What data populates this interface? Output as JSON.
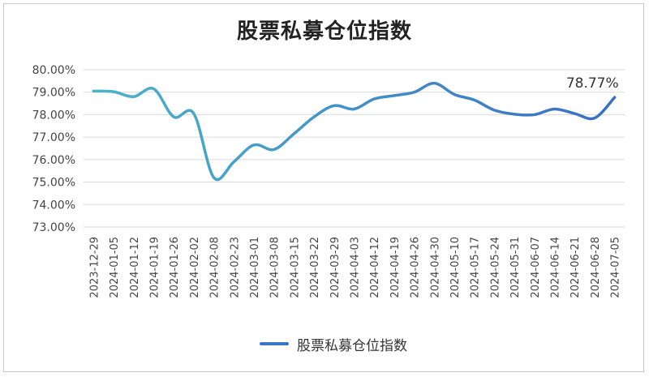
{
  "chart_data": {
    "type": "line",
    "title": "股票私募仓位指数",
    "series": [
      {
        "name": "股票私募仓位指数",
        "values": [
          79.05,
          79.02,
          78.8,
          79.15,
          77.9,
          78.05,
          75.2,
          75.9,
          76.65,
          76.45,
          77.15,
          77.9,
          78.4,
          78.25,
          78.7,
          78.85,
          79.0,
          79.4,
          78.9,
          78.65,
          78.2,
          78.02,
          78.0,
          78.25,
          78.05,
          77.85,
          78.77
        ]
      }
    ],
    "categories": [
      "2023-12-29",
      "2024-01-05",
      "2024-01-12",
      "2024-01-19",
      "2024-01-26",
      "2024-02-02",
      "2024-02-08",
      "2024-02-23",
      "2024-03-01",
      "2024-03-08",
      "2024-03-15",
      "2024-03-22",
      "2024-03-29",
      "2024-04-03",
      "2024-04-12",
      "2024-04-19",
      "2024-04-26",
      "2024-04-30",
      "2024-05-10",
      "2024-05-17",
      "2024-05-24",
      "2024-05-31",
      "2024-06-07",
      "2024-06-14",
      "2024-06-21",
      "2024-06-28",
      "2024-07-05"
    ],
    "y_ticks": [
      "80.00%",
      "79.00%",
      "78.00%",
      "77.00%",
      "76.00%",
      "75.00%",
      "74.00%",
      "73.00%"
    ],
    "ylim": [
      73,
      80
    ],
    "last_label": "78.77%",
    "grid": true,
    "legend_position": "bottom",
    "colors": {
      "line_start": "#4bb3c8",
      "line_end": "#3a6fc4",
      "grid": "#d9d9d9",
      "axis_text": "#444444"
    }
  }
}
